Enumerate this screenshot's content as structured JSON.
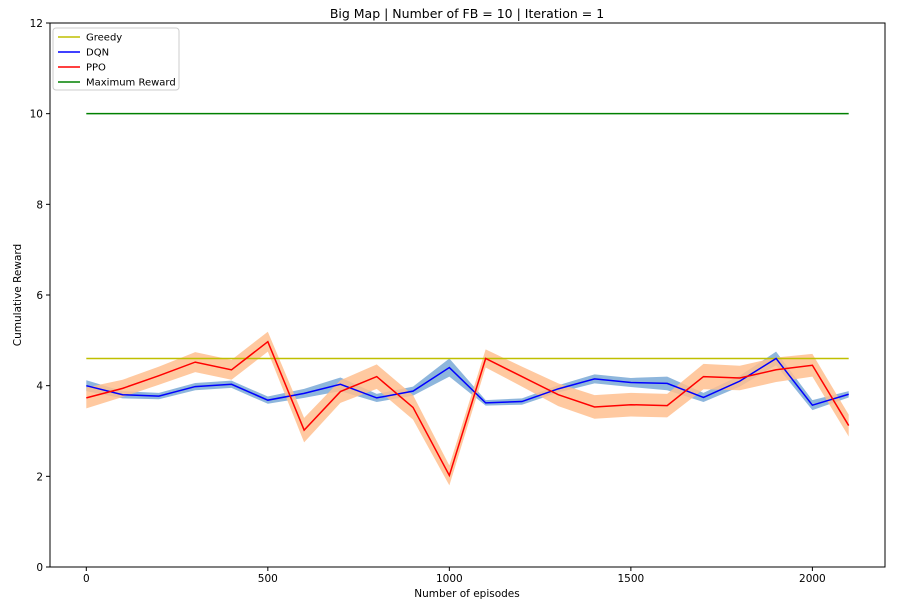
{
  "chart_data": {
    "type": "line",
    "title": "Big Map | Number of FB = 10 | Iteration = 1",
    "xlabel": "Number of episodes",
    "ylabel": "Cumulative Reward",
    "xlim": [
      -100,
      2200
    ],
    "ylim": [
      0,
      12
    ],
    "xticks": [
      0,
      500,
      1000,
      1500,
      2000
    ],
    "yticks": [
      0,
      2,
      4,
      6,
      8,
      10,
      12
    ],
    "grid": false,
    "legend_position": "top-left",
    "x": [
      0,
      100,
      200,
      300,
      400,
      500,
      600,
      700,
      800,
      900,
      1000,
      1100,
      1200,
      1300,
      1400,
      1500,
      1600,
      1700,
      1800,
      1900,
      2000,
      2100
    ],
    "series": [
      {
        "name": "Greedy",
        "color": "#bfbf00",
        "values": [
          4.6,
          4.6,
          4.6,
          4.6,
          4.6,
          4.6,
          4.6,
          4.6,
          4.6,
          4.6,
          4.6,
          4.6,
          4.6,
          4.6,
          4.6,
          4.6,
          4.6,
          4.6,
          4.6,
          4.6,
          4.6,
          4.6
        ]
      },
      {
        "name": "DQN",
        "color": "#0000ff",
        "band_color": "#7aa9d6",
        "values": [
          4.0,
          3.8,
          3.77,
          3.98,
          4.03,
          3.68,
          3.83,
          4.03,
          3.73,
          3.88,
          4.4,
          3.62,
          3.65,
          3.93,
          4.15,
          4.07,
          4.05,
          3.74,
          4.1,
          4.6,
          3.57,
          3.81
        ],
        "lower": [
          3.88,
          3.72,
          3.7,
          3.9,
          3.95,
          3.6,
          3.73,
          3.88,
          3.64,
          3.78,
          4.2,
          3.56,
          3.58,
          3.85,
          4.05,
          3.97,
          3.9,
          3.64,
          3.98,
          4.45,
          3.46,
          3.74
        ],
        "upper": [
          4.12,
          3.88,
          3.84,
          4.06,
          4.11,
          3.76,
          3.93,
          4.18,
          3.82,
          3.98,
          4.6,
          3.68,
          3.72,
          4.01,
          4.25,
          4.17,
          4.2,
          3.84,
          4.22,
          4.75,
          3.68,
          3.88
        ]
      },
      {
        "name": "PPO",
        "color": "#ff0000",
        "band_color": "#ffbf8f",
        "values": [
          3.73,
          3.94,
          4.22,
          4.52,
          4.35,
          4.97,
          3.02,
          3.87,
          4.2,
          3.52,
          2.02,
          4.6,
          4.2,
          3.8,
          3.53,
          3.58,
          3.56,
          4.2,
          4.17,
          4.35,
          4.45,
          3.12
        ],
        "lower": [
          3.5,
          3.75,
          4.02,
          4.3,
          4.13,
          4.75,
          2.75,
          3.62,
          3.93,
          3.25,
          1.8,
          4.4,
          3.98,
          3.55,
          3.27,
          3.32,
          3.3,
          3.92,
          3.9,
          4.08,
          4.2,
          2.88
        ],
        "upper": [
          3.96,
          4.13,
          4.42,
          4.74,
          4.57,
          5.19,
          3.29,
          4.12,
          4.47,
          3.79,
          2.24,
          4.8,
          4.42,
          4.05,
          3.79,
          3.84,
          3.82,
          4.48,
          4.44,
          4.62,
          4.7,
          3.36
        ]
      },
      {
        "name": "Maximum Reward",
        "color": "#008000",
        "values": [
          10,
          10,
          10,
          10,
          10,
          10,
          10,
          10,
          10,
          10,
          10,
          10,
          10,
          10,
          10,
          10,
          10,
          10,
          10,
          10,
          10,
          10
        ]
      }
    ]
  }
}
